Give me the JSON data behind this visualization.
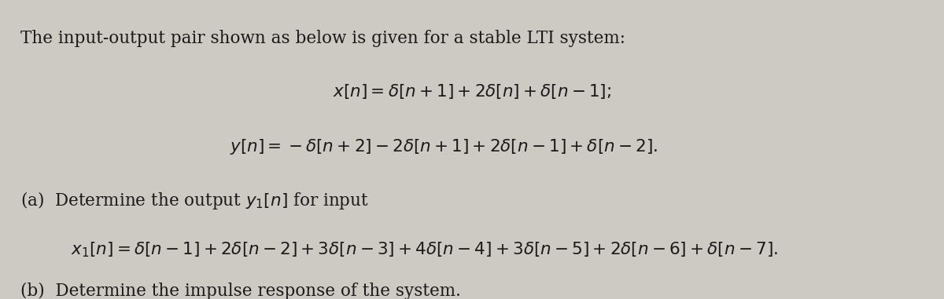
{
  "background_color": "#cdc9c3",
  "text_color": "#1a1a1a",
  "figsize": [
    12.0,
    3.81
  ],
  "dpi": 100,
  "line1": "The input-output pair shown as below is given for a stable LTI system:",
  "line2": "$x[n] = \\delta[n+1] + 2\\delta[n] + \\delta[n-1];$",
  "line3": "$y[n] = -\\delta[n+2] - 2\\delta[n+1] + 2\\delta[n-1] + \\delta[n-2].$",
  "line4": "(a)  Determine the output $y_1[n]$ for input",
  "line5": "$x_1[n] = \\delta[n-1] + 2\\delta[n-2] + 3\\delta[n-3] + 4\\delta[n-4] + 3\\delta[n-5] + 2\\delta[n-6] + \\delta[n-7].$",
  "line6": "(b)  Determine the impulse response of the system.",
  "font_size_body": 15.5,
  "font_size_math": 15.5
}
